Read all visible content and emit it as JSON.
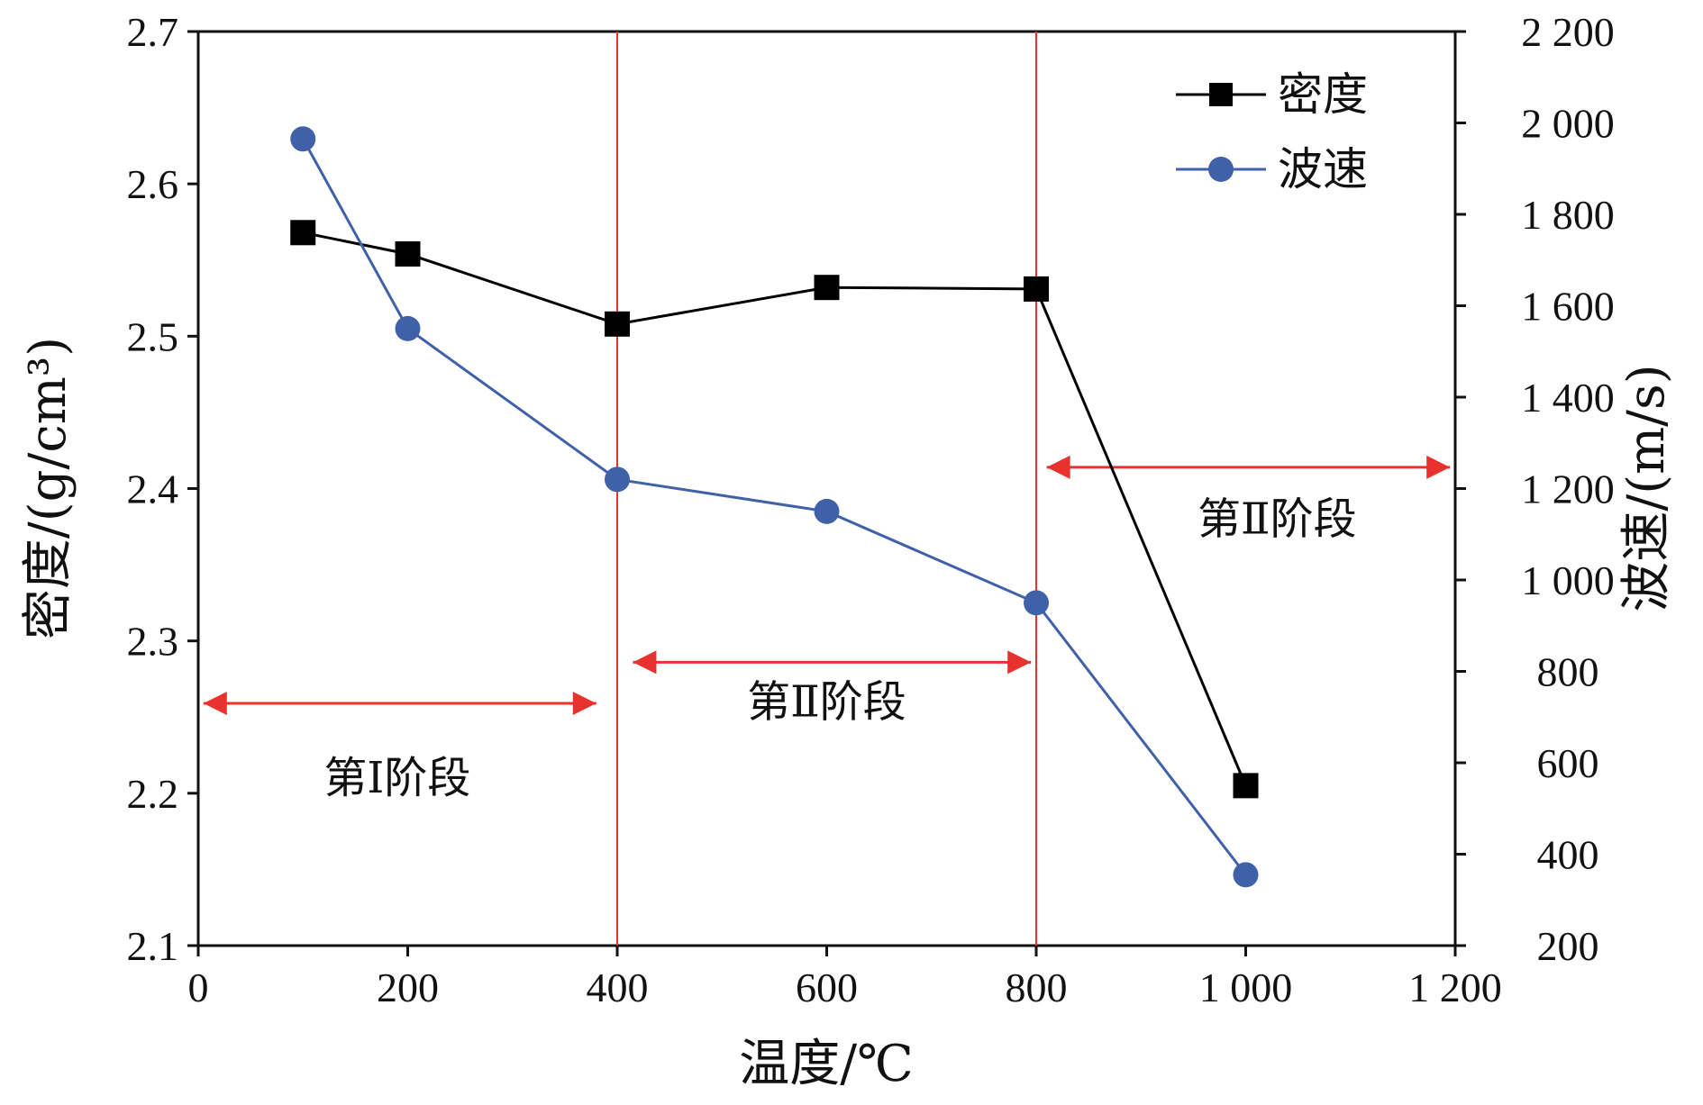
{
  "chart_data": {
    "type": "line",
    "xlabel": "温度/℃",
    "ylabel_left": "密度/(g/cm³)",
    "ylabel_right": "波速/(m/s)",
    "xlim": [
      0,
      1200
    ],
    "ylim_left": [
      2.1,
      2.7
    ],
    "ylim_right": [
      200,
      2200
    ],
    "x_ticks": [
      {
        "v": 0,
        "label": "0"
      },
      {
        "v": 200,
        "label": "200"
      },
      {
        "v": 400,
        "label": "400"
      },
      {
        "v": 600,
        "label": "600"
      },
      {
        "v": 800,
        "label": "800"
      },
      {
        "v": 1000,
        "label": "1 000"
      },
      {
        "v": 1200,
        "label": "1 200"
      }
    ],
    "y_left_ticks": [
      {
        "v": 2.1,
        "label": "2.1"
      },
      {
        "v": 2.2,
        "label": "2.2"
      },
      {
        "v": 2.3,
        "label": "2.3"
      },
      {
        "v": 2.4,
        "label": "2.4"
      },
      {
        "v": 2.5,
        "label": "2.5"
      },
      {
        "v": 2.6,
        "label": "2.6"
      },
      {
        "v": 2.7,
        "label": "2.7"
      }
    ],
    "y_right_ticks": [
      {
        "v": 200,
        "label": "200"
      },
      {
        "v": 400,
        "label": "400"
      },
      {
        "v": 600,
        "label": "600"
      },
      {
        "v": 800,
        "label": "800"
      },
      {
        "v": 1000,
        "label": "1 000"
      },
      {
        "v": 1200,
        "label": "1 200"
      },
      {
        "v": 1400,
        "label": "1 400"
      },
      {
        "v": 1600,
        "label": "1 600"
      },
      {
        "v": 1800,
        "label": "1 800"
      },
      {
        "v": 2000,
        "label": "2 000"
      },
      {
        "v": 2200,
        "label": "2 200"
      }
    ],
    "series": [
      {
        "name": "密度",
        "axis": "left",
        "marker": "square",
        "color": "#000000",
        "x": [
          100,
          200,
          400,
          600,
          800,
          1000
        ],
        "values": [
          2.568,
          2.554,
          2.508,
          2.532,
          2.531,
          2.205
        ]
      },
      {
        "name": "波速",
        "axis": "right",
        "marker": "circle",
        "color": "#4060a8",
        "x": [
          100,
          200,
          400,
          600,
          800,
          1000
        ],
        "values": [
          1965,
          1550,
          1220,
          1150,
          950,
          355
        ]
      }
    ],
    "vertical_lines": [
      400,
      800
    ],
    "stage_color": "#e8322e",
    "stages": [
      {
        "label": "第Ⅰ阶段",
        "arrow_x": [
          5,
          380
        ],
        "arrow_y": 2.259,
        "label_x": 190,
        "label_y": 2.21
      },
      {
        "label": "第Ⅱ阶段",
        "arrow_x": [
          415,
          795
        ],
        "arrow_y": 2.286,
        "label_x": 600,
        "label_y": 2.26
      },
      {
        "label": "第Ⅱ阶段",
        "arrow_x": [
          810,
          1195
        ],
        "arrow_y": 2.414,
        "label_x": 1030,
        "label_y": 2.38
      }
    ],
    "legend_position": "top-right",
    "grid": false
  }
}
